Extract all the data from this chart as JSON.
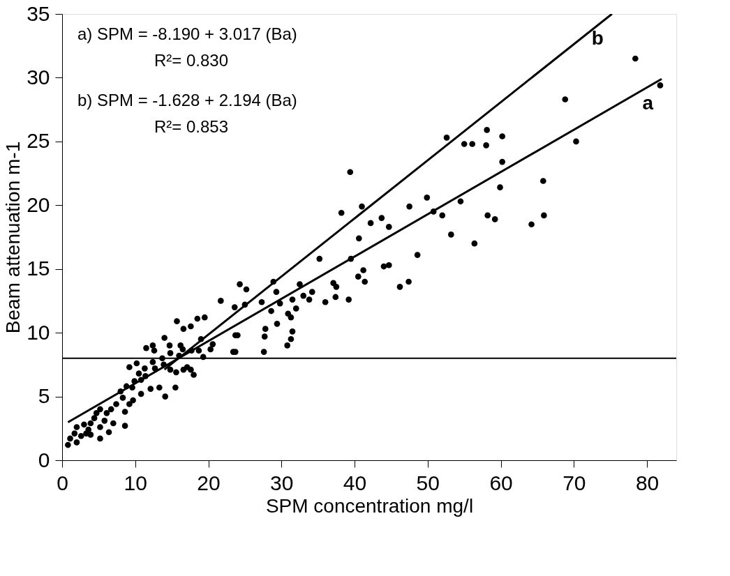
{
  "chart_data": {
    "type": "scatter",
    "xlabel": "SPM concentration mg/l",
    "ylabel": "Beam attenuation m-1",
    "xlim": [
      0,
      84
    ],
    "xticks": [
      0,
      10,
      20,
      30,
      40,
      50,
      60,
      70,
      80
    ],
    "ylim": [
      0,
      35
    ],
    "yticks": [
      0,
      5,
      10,
      15,
      20,
      25,
      30,
      35
    ],
    "marker": "circle",
    "annotations": [
      "a)    SPM = -8.190 + 3.017 (Ba)",
      "R²= 0.830",
      "b)    SPM = -1.628 + 2.194 (Ba)",
      "R²= 0.853"
    ],
    "ref_lines": [
      {
        "axis": "y",
        "value": 8,
        "color": "#000000"
      }
    ],
    "series": [
      {
        "color": "#000000",
        "x": [
          24.3,
          25.2,
          21.7,
          23.6,
          25.0,
          15.7,
          18.5,
          19.5,
          16.6,
          17.6,
          24.0,
          23.4,
          14.0,
          11.5,
          12.4,
          12.6,
          14.7,
          16.2,
          16.0,
          14.8,
          13.7,
          12.4,
          13.9,
          14.8,
          15.6,
          16.6,
          17.6,
          18.0,
          17.1,
          17.7,
          18.7,
          19.3,
          20.6,
          20.3,
          19.0,
          16.5,
          12.7,
          11.4,
          10.8,
          9.9,
          9.6,
          8.8,
          8.0,
          8.3,
          12.1,
          13.3,
          15.5,
          14.1,
          10.8,
          9.7,
          9.2,
          8.6,
          7.4,
          6.7,
          6.1,
          5.2,
          4.7,
          5.8,
          7.0,
          8.6,
          6.4,
          5.2,
          3.9,
          3.0,
          2.0,
          1.7,
          2.6,
          3.9,
          5.2,
          1.1,
          0.8,
          2.0,
          3.6,
          4.4,
          3.3,
          10.5,
          9.2,
          10.2,
          11.3,
          43.7,
          42.2,
          44.7,
          40.6,
          48.6,
          35.2,
          39.5,
          41.2,
          44.0,
          44.7,
          40.5,
          41.4,
          47.4,
          46.2,
          37.1,
          37.5,
          37.4,
          39.2,
          36.0,
          34.2,
          32.5,
          33.0,
          33.8,
          31.5,
          32.0,
          30.9,
          31.3,
          29.3,
          28.9,
          27.3,
          29.8,
          28.6,
          29.4,
          31.5,
          31.3,
          30.8,
          27.8,
          27.7,
          27.6,
          23.7,
          23.7,
          39.4,
          41.0,
          38.2,
          47.5,
          49.9,
          50.8,
          78.4,
          81.8,
          68.8,
          70.3,
          52.6,
          58.1,
          55.0,
          56.1,
          58.0,
          60.2,
          60.2,
          59.9,
          65.8,
          54.5,
          52.0,
          58.2,
          59.2,
          65.9,
          64.2,
          53.2,
          56.4
        ],
        "values": [
          13.8,
          13.4,
          12.5,
          12.0,
          12.2,
          10.9,
          11.1,
          11.2,
          10.3,
          10.5,
          9.8,
          8.5,
          9.6,
          8.8,
          9.0,
          8.6,
          9.0,
          9.0,
          8.2,
          8.4,
          8.0,
          7.7,
          7.5,
          7.1,
          6.9,
          7.1,
          7.1,
          6.7,
          7.3,
          8.6,
          8.6,
          8.1,
          9.1,
          8.7,
          9.5,
          8.7,
          7.2,
          6.6,
          6.3,
          6.2,
          5.7,
          5.8,
          5.4,
          4.9,
          5.6,
          5.7,
          5.7,
          5.0,
          5.2,
          4.7,
          4.4,
          3.8,
          4.4,
          4.0,
          3.7,
          4.0,
          3.7,
          3.1,
          2.9,
          2.7,
          2.2,
          2.6,
          2.9,
          2.8,
          2.6,
          2.1,
          1.9,
          2.0,
          1.7,
          1.7,
          1.2,
          1.4,
          2.4,
          3.3,
          2.1,
          6.8,
          7.3,
          7.6,
          7.2,
          19.0,
          18.6,
          18.3,
          17.4,
          16.1,
          15.8,
          15.8,
          14.9,
          15.2,
          15.3,
          14.4,
          14.0,
          14.0,
          13.6,
          13.9,
          13.6,
          12.8,
          12.6,
          12.4,
          13.2,
          13.8,
          12.9,
          12.6,
          12.6,
          11.9,
          11.5,
          11.2,
          13.2,
          14.0,
          12.4,
          12.3,
          11.7,
          10.7,
          10.1,
          9.5,
          9.0,
          10.3,
          9.7,
          8.5,
          9.8,
          8.5,
          22.6,
          19.9,
          19.4,
          19.9,
          20.6,
          19.5,
          31.5,
          29.4,
          28.3,
          25.0,
          25.3,
          25.9,
          24.8,
          24.8,
          24.7,
          25.4,
          23.4,
          21.4,
          21.9,
          20.3,
          19.2,
          19.2,
          18.9,
          19.2,
          18.5,
          17.7,
          17.0
        ]
      },
      {
        "type": "line",
        "name": "a",
        "color": "#000000",
        "marker": "none",
        "line_style": "solid",
        "x": [
          0.8,
          82.0
        ],
        "values": [
          2.98,
          29.9
        ]
      },
      {
        "type": "line",
        "name": "b",
        "color": "#000000",
        "marker": "none",
        "line_style": "solid",
        "x": [
          14.0,
          75.2
        ],
        "values": [
          7.12,
          35.0
        ]
      }
    ]
  }
}
